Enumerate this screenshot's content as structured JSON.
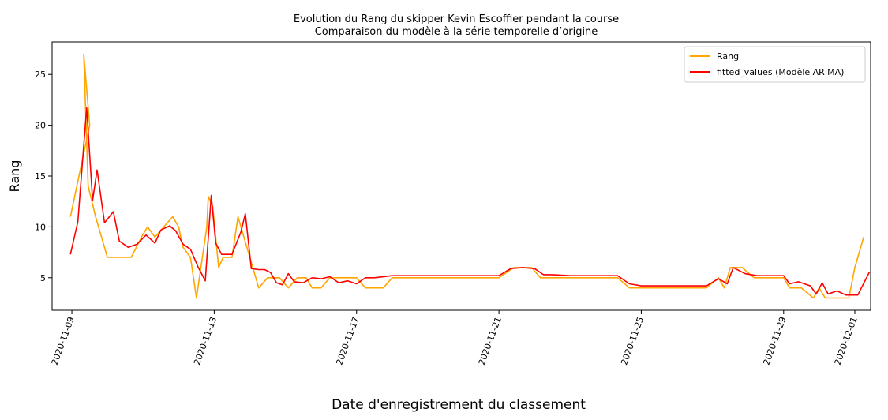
{
  "chart_data": {
    "type": "line",
    "title": "Evolution du Rang du skipper Kevin Escoffier pendant la course",
    "subtitle": "Comparaison du modèle à la série temporelle d’origine",
    "xlabel": "Date d'enregistrement du classement",
    "ylabel": "Rang",
    "x_ticks": [
      "2020-11-09",
      "2020-11-13",
      "2020-11-17",
      "2020-11-21",
      "2020-11-25",
      "2020-11-29",
      "2020-12-01"
    ],
    "y_ticks": [
      5,
      10,
      15,
      20,
      25
    ],
    "xlim": [
      "2020-11-08 10:40",
      "2020-12-01 10:40"
    ],
    "ylim": [
      1.8,
      28.2
    ],
    "grid": false,
    "legend_position": "top-right",
    "series": [
      {
        "name": "Rang",
        "color": "#ffa500",
        "points": [
          [
            "2020-11-08 23:00",
            11
          ],
          [
            "2020-11-09 12:00",
            20
          ],
          [
            "2020-11-09 08:00",
            27
          ],
          [
            "2020-11-09 11:00",
            14
          ],
          [
            "2020-11-09 16:00",
            11
          ],
          [
            "2020-11-09 20:00",
            9
          ],
          [
            "2020-11-10 00:00",
            7
          ],
          [
            "2020-11-10 08:00",
            7
          ],
          [
            "2020-11-10 16:00",
            7
          ],
          [
            "2020-11-10 23:00",
            9
          ],
          [
            "2020-11-11 03:00",
            10
          ],
          [
            "2020-11-11 08:00",
            9
          ],
          [
            "2020-11-11 14:00",
            10
          ],
          [
            "2020-11-11 20:00",
            11
          ],
          [
            "2020-11-12 00:00",
            10
          ],
          [
            "2020-11-12 03:00",
            8
          ],
          [
            "2020-11-12 08:00",
            7
          ],
          [
            "2020-11-12 12:00",
            3
          ],
          [
            "2020-11-12 19:00",
            10
          ],
          [
            "2020-11-12 20:00",
            13
          ],
          [
            "2020-11-12 23:00",
            12
          ],
          [
            "2020-11-13 03:00",
            6
          ],
          [
            "2020-11-13 06:00",
            7
          ],
          [
            "2020-11-13 12:00",
            7
          ],
          [
            "2020-11-13 16:00",
            11
          ],
          [
            "2020-11-13 20:00",
            9
          ],
          [
            "2020-11-14 00:00",
            7
          ],
          [
            "2020-11-14 06:00",
            4
          ],
          [
            "2020-11-14 12:00",
            5
          ],
          [
            "2020-11-14 20:00",
            5
          ],
          [
            "2020-11-15 02:00",
            4
          ],
          [
            "2020-11-15 08:00",
            5
          ],
          [
            "2020-11-15 14:00",
            5
          ],
          [
            "2020-11-15 18:00",
            4
          ],
          [
            "2020-11-16 00:00",
            4
          ],
          [
            "2020-11-16 06:00",
            5
          ],
          [
            "2020-11-16 12:00",
            5
          ],
          [
            "2020-11-16 18:00",
            5
          ],
          [
            "2020-11-17 00:00",
            5
          ],
          [
            "2020-11-17 06:00",
            4
          ],
          [
            "2020-11-17 12:00",
            4
          ],
          [
            "2020-11-17 18:00",
            4
          ],
          [
            "2020-11-18 00:00",
            5
          ],
          [
            "2020-11-18 06:00",
            5
          ],
          [
            "2020-11-18 12:00",
            5
          ],
          [
            "2020-11-19 00:00",
            5
          ],
          [
            "2020-11-20 00:00",
            5
          ],
          [
            "2020-11-21 00:00",
            5
          ],
          [
            "2020-11-21 10:00",
            6
          ],
          [
            "2020-11-21 16:00",
            6
          ],
          [
            "2020-11-21 22:00",
            6
          ],
          [
            "2020-11-22 04:00",
            5
          ],
          [
            "2020-11-22 12:00",
            5
          ],
          [
            "2020-11-23 00:00",
            5
          ],
          [
            "2020-11-24 00:00",
            5
          ],
          [
            "2020-11-24 08:00",
            5
          ],
          [
            "2020-11-24 16:00",
            4
          ],
          [
            "2020-11-25 00:00",
            4
          ],
          [
            "2020-11-26 00:00",
            4
          ],
          [
            "2020-11-26 20:00",
            4
          ],
          [
            "2020-11-27 04:00",
            5
          ],
          [
            "2020-11-27 08:00",
            4
          ],
          [
            "2020-11-27 12:00",
            6
          ],
          [
            "2020-11-27 20:00",
            6
          ],
          [
            "2020-11-28 04:00",
            5
          ],
          [
            "2020-11-28 16:00",
            5
          ],
          [
            "2020-11-29 00:00",
            5
          ],
          [
            "2020-11-29 04:00",
            4
          ],
          [
            "2020-11-29 12:00",
            4
          ],
          [
            "2020-11-29 20:00",
            3
          ],
          [
            "2020-11-30 00:00",
            4
          ],
          [
            "2020-11-30 04:00",
            3
          ],
          [
            "2020-11-30 12:00",
            3
          ],
          [
            "2020-11-30 20:00",
            3
          ],
          [
            "2020-12-01 00:00",
            6
          ],
          [
            "2020-12-01 02:00",
            7
          ],
          [
            "2020-12-01 06:00",
            9
          ]
        ]
      },
      {
        "name": "fitted_values (Modèle ARIMA)",
        "color": "#ff0000",
        "points": [
          [
            "2020-11-08 23:00",
            7.3
          ],
          [
            "2020-11-09 04:00",
            10.5
          ],
          [
            "2020-11-09 10:00",
            21.7
          ],
          [
            "2020-11-09 14:00",
            12.6
          ],
          [
            "2020-11-09 17:00",
            15.6
          ],
          [
            "2020-11-09 22:00",
            10.4
          ],
          [
            "2020-11-10 04:00",
            11.5
          ],
          [
            "2020-11-10 08:00",
            8.6
          ],
          [
            "2020-11-10 14:00",
            8
          ],
          [
            "2020-11-10 20:00",
            8.3
          ],
          [
            "2020-11-11 02:00",
            9.2
          ],
          [
            "2020-11-11 08:00",
            8.4
          ],
          [
            "2020-11-11 12:00",
            9.7
          ],
          [
            "2020-11-11 18:00",
            10.1
          ],
          [
            "2020-11-11 22:00",
            9.6
          ],
          [
            "2020-11-12 03:00",
            8.3
          ],
          [
            "2020-11-12 08:00",
            7.8
          ],
          [
            "2020-11-12 13:00",
            6.1
          ],
          [
            "2020-11-12 18:00",
            4.7
          ],
          [
            "2020-11-12 22:00",
            13.1
          ],
          [
            "2020-11-13 01:00",
            8.4
          ],
          [
            "2020-11-13 05:00",
            7.3
          ],
          [
            "2020-11-13 12:00",
            7.3
          ],
          [
            "2020-11-13 18:00",
            9.5
          ],
          [
            "2020-11-13 21:00",
            11.3
          ],
          [
            "2020-11-14 01:00",
            5.9
          ],
          [
            "2020-11-14 06:00",
            5.8
          ],
          [
            "2020-11-14 10:00",
            5.8
          ],
          [
            "2020-11-14 14:00",
            5.5
          ],
          [
            "2020-11-14 18:00",
            4.5
          ],
          [
            "2020-11-14 22:00",
            4.3
          ],
          [
            "2020-11-15 02:00",
            5.4
          ],
          [
            "2020-11-15 06:00",
            4.6
          ],
          [
            "2020-11-15 12:00",
            4.5
          ],
          [
            "2020-11-15 18:00",
            5
          ],
          [
            "2020-11-16 00:00",
            4.9
          ],
          [
            "2020-11-16 06:00",
            5.1
          ],
          [
            "2020-11-16 12:00",
            4.5
          ],
          [
            "2020-11-16 18:00",
            4.7
          ],
          [
            "2020-11-17 00:00",
            4.4
          ],
          [
            "2020-11-17 06:00",
            5
          ],
          [
            "2020-11-17 12:00",
            5
          ],
          [
            "2020-11-18 00:00",
            5.2
          ],
          [
            "2020-11-19 00:00",
            5.2
          ],
          [
            "2020-11-20 00:00",
            5.2
          ],
          [
            "2020-11-21 00:00",
            5.2
          ],
          [
            "2020-11-21 08:00",
            5.9
          ],
          [
            "2020-11-21 16:00",
            6
          ],
          [
            "2020-11-22 00:00",
            5.9
          ],
          [
            "2020-11-22 06:00",
            5.3
          ],
          [
            "2020-11-22 12:00",
            5.3
          ],
          [
            "2020-11-23 00:00",
            5.2
          ],
          [
            "2020-11-24 00:00",
            5.2
          ],
          [
            "2020-11-24 08:00",
            5.2
          ],
          [
            "2020-11-24 16:00",
            4.4
          ],
          [
            "2020-11-25 00:00",
            4.2
          ],
          [
            "2020-11-26 00:00",
            4.2
          ],
          [
            "2020-11-26 20:00",
            4.2
          ],
          [
            "2020-11-27 04:00",
            4.9
          ],
          [
            "2020-11-27 10:00",
            4.4
          ],
          [
            "2020-11-27 14:00",
            6
          ],
          [
            "2020-11-27 22:00",
            5.4
          ],
          [
            "2020-11-28 06:00",
            5.2
          ],
          [
            "2020-11-28 18:00",
            5.2
          ],
          [
            "2020-11-29 00:00",
            5.2
          ],
          [
            "2020-11-29 04:00",
            4.4
          ],
          [
            "2020-11-29 10:00",
            4.6
          ],
          [
            "2020-11-29 18:00",
            4.2
          ],
          [
            "2020-11-29 22:00",
            3.4
          ],
          [
            "2020-11-30 02:00",
            4.5
          ],
          [
            "2020-11-30 06:00",
            3.4
          ],
          [
            "2020-11-30 12:00",
            3.7
          ],
          [
            "2020-11-30 18:00",
            3.3
          ],
          [
            "2020-12-01 00:00",
            3.3
          ],
          [
            "2020-12-01 02:00",
            3.3
          ],
          [
            "2020-12-01 10:00",
            5.6
          ]
        ]
      }
    ]
  }
}
